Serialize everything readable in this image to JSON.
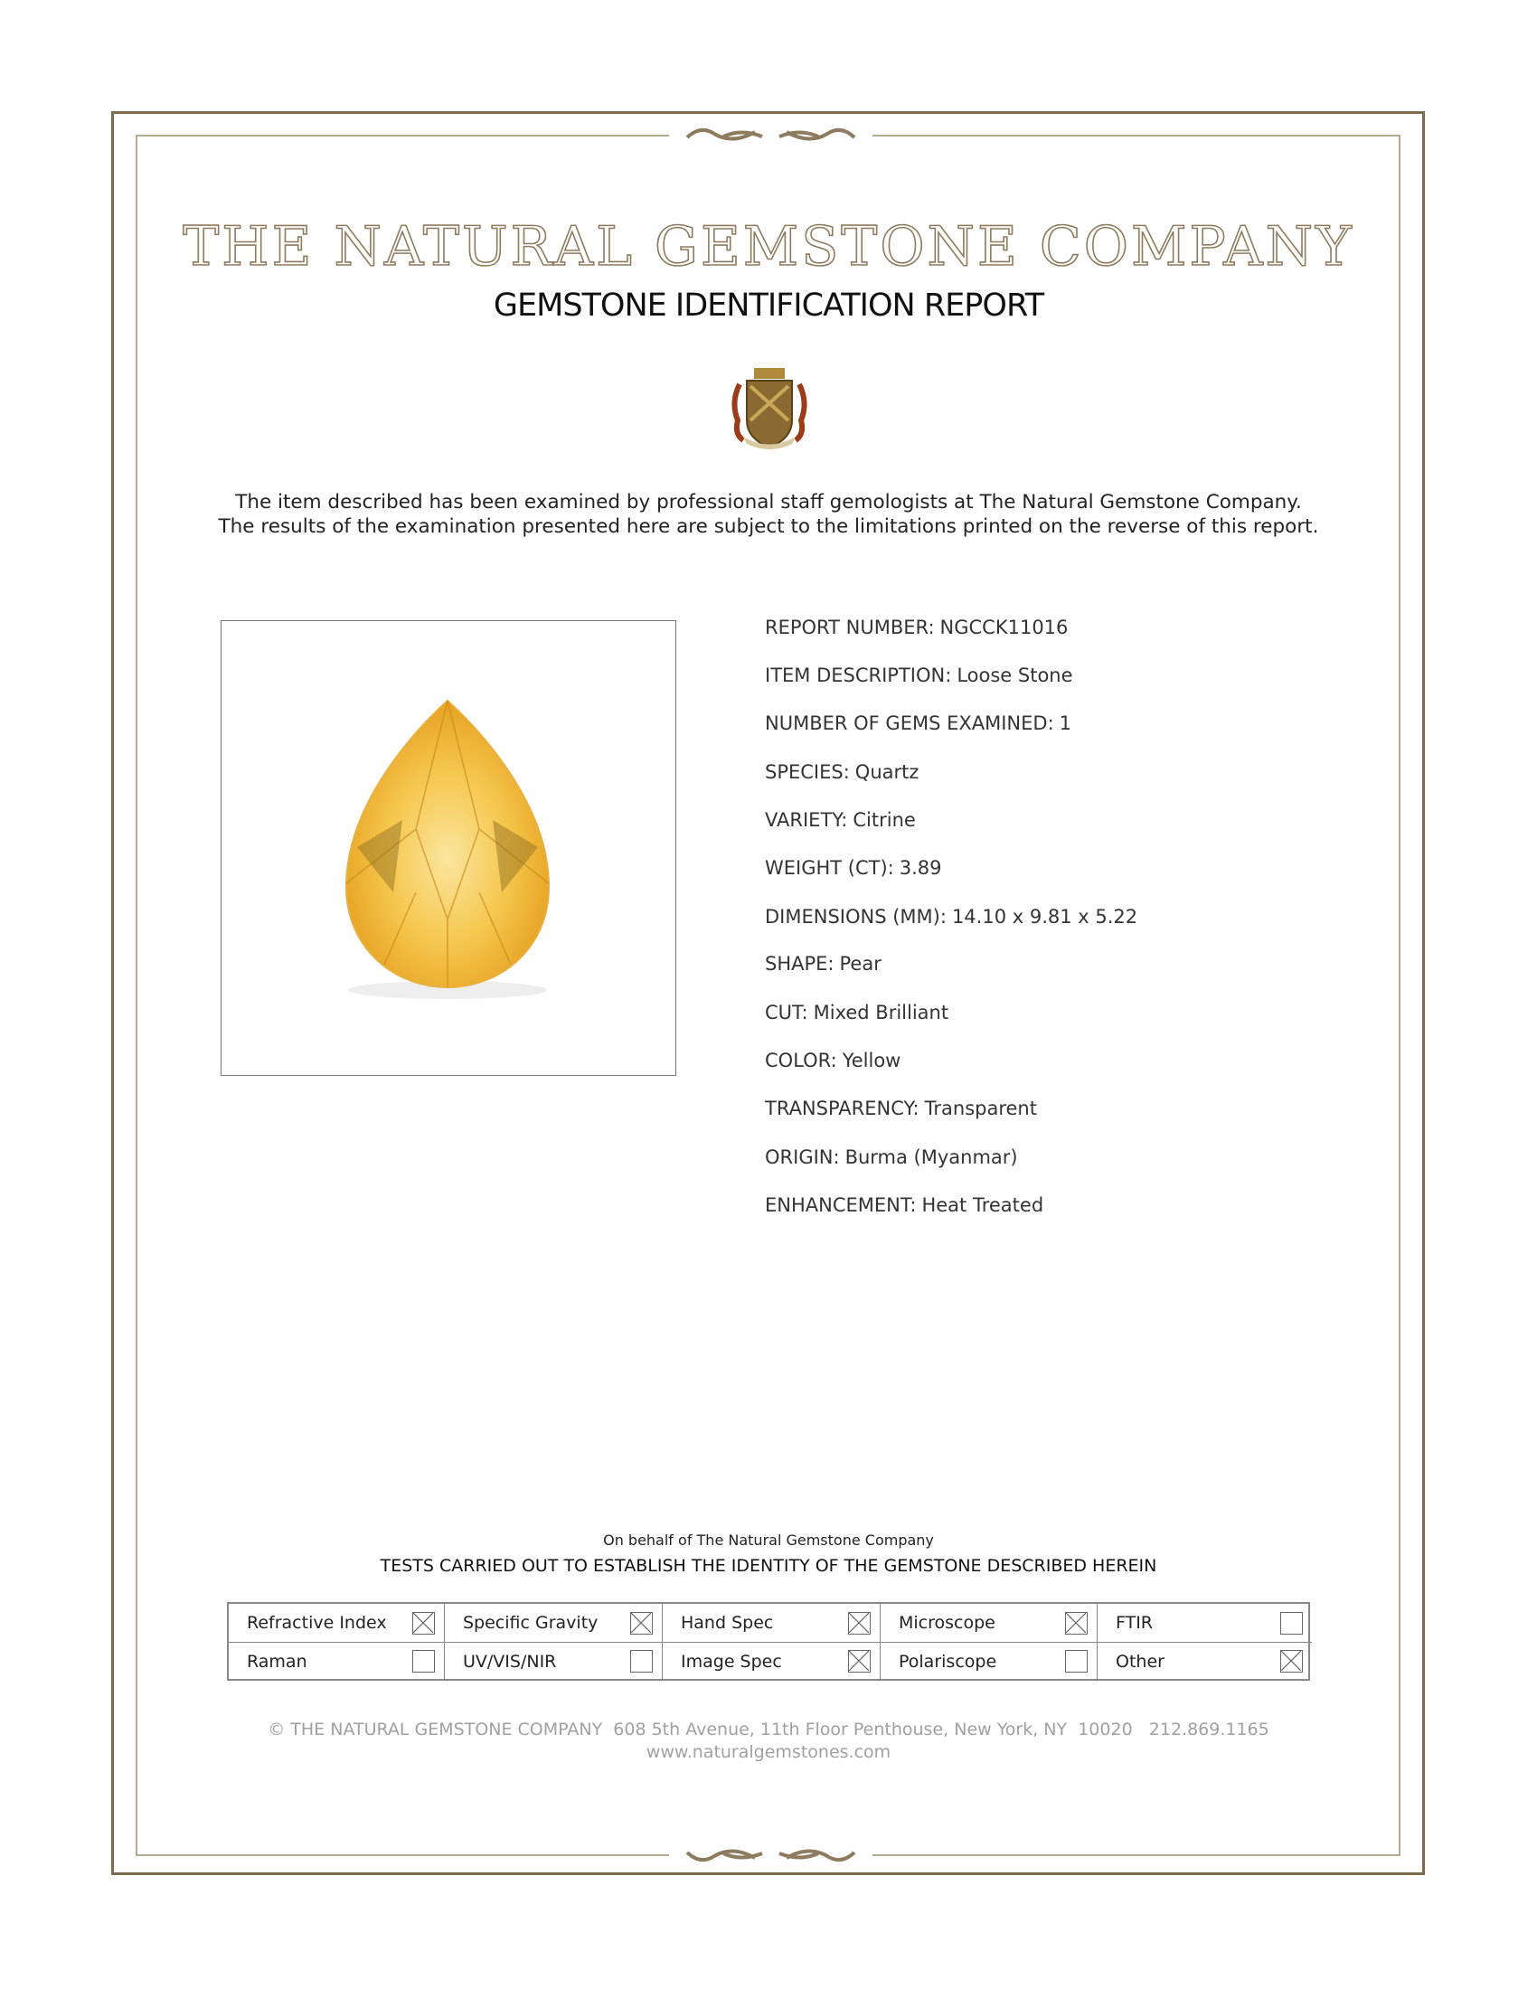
{
  "header": {
    "company_name": "THE NATURAL GEMSTONE COMPANY",
    "report_title": "GEMSTONE IDENTIFICATION REPORT",
    "crest_icon": "heraldic-crest-logo",
    "intro_line1": "The item described has been examined by professional staff gemologists at The Natural Gemstone Company.",
    "intro_line2": "The results of the examination presented here are subject to the limitations printed on the reverse of this report."
  },
  "colors": {
    "border": "#7d6a4e",
    "title": "#8c7b5e",
    "gem": "#f2b632"
  },
  "details": [
    {
      "label": "REPORT NUMBER:",
      "value": "NGCCK11016"
    },
    {
      "label": "ITEM DESCRIPTION:",
      "value": "Loose Stone"
    },
    {
      "label": "NUMBER OF GEMS EXAMINED:",
      "value": "1"
    },
    {
      "label": "SPECIES:",
      "value": "Quartz"
    },
    {
      "label": "VARIETY:",
      "value": "Citrine"
    },
    {
      "label": "WEIGHT (CT):",
      "value": "3.89"
    },
    {
      "label": "DIMENSIONS (MM):",
      "value": "14.10 x 9.81 x 5.22"
    },
    {
      "label": "SHAPE:",
      "value": "Pear"
    },
    {
      "label": "CUT:",
      "value": "Mixed Brilliant"
    },
    {
      "label": "COLOR:",
      "value": "Yellow"
    },
    {
      "label": "TRANSPARENCY:",
      "value": "Transparent"
    },
    {
      "label": "ORIGIN:",
      "value": "Burma (Myanmar)"
    },
    {
      "label": "ENHANCEMENT:",
      "value": "Heat Treated"
    }
  ],
  "tests": {
    "behalf": "On behalf of The Natural Gemstone Company",
    "title": "TESTS CARRIED OUT TO ESTABLISH THE IDENTITY OF THE GEMSTONE DESCRIBED HEREIN",
    "items": [
      {
        "label": "Refractive Index",
        "checked": true
      },
      {
        "label": "Specific Gravity",
        "checked": true
      },
      {
        "label": "Hand Spec",
        "checked": true
      },
      {
        "label": "Microscope",
        "checked": true
      },
      {
        "label": "FTIR",
        "checked": false
      },
      {
        "label": "Raman",
        "checked": false
      },
      {
        "label": "UV/VIS/NIR",
        "checked": false
      },
      {
        "label": "Image Spec",
        "checked": true
      },
      {
        "label": "Polariscope",
        "checked": false
      },
      {
        "label": "Other",
        "checked": true
      }
    ]
  },
  "footer": {
    "address": "© THE NATURAL GEMSTONE COMPANY  608 5th Avenue, 11th Floor Penthouse, New York, NY  10020   212.869.1165",
    "website": "www.naturalgemstones.com"
  }
}
